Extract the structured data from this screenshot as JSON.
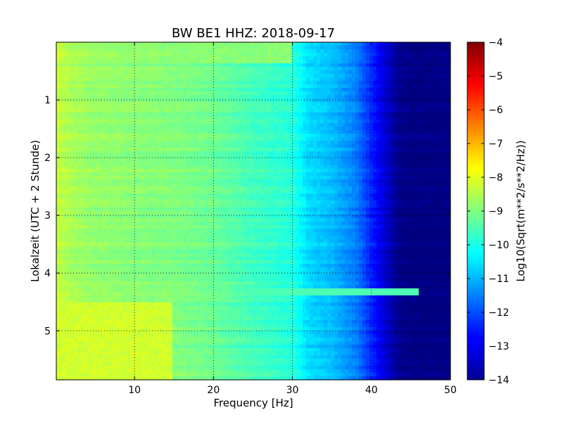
{
  "chart_data": {
    "type": "heatmap",
    "title": "BW BE1 HHZ: 2018-09-17",
    "xlabel": "Frequency [Hz]",
    "ylabel": "Lokalzeit (UTC + 2 Stunde)",
    "xlim": [
      0.1,
      50
    ],
    "ylim": [
      5.85,
      0.0
    ],
    "xticks": [
      10,
      20,
      30,
      40,
      50
    ],
    "yticks": [
      1,
      2,
      3,
      4,
      5
    ],
    "grid": true,
    "colormap": "jet",
    "colorbar": {
      "label": "Log10(Sqrt(m**2/s**2/Hz))",
      "range": [
        -14,
        -4
      ],
      "ticks": [
        -4,
        -5,
        -6,
        -7,
        -8,
        -9,
        -10,
        -11,
        -12,
        -13,
        -14
      ]
    },
    "psd_profile": {
      "frequency_hz": [
        0,
        2,
        5,
        10,
        15,
        20,
        25,
        30,
        32,
        35,
        38,
        40,
        42,
        43.5,
        45,
        50
      ],
      "log10_amplitude": [
        -8.3,
        -8.6,
        -8.8,
        -8.9,
        -9.0,
        -9.2,
        -9.6,
        -9.9,
        -10.6,
        -10.9,
        -11.5,
        -12.4,
        -13.3,
        -13.9,
        -14,
        -14
      ]
    },
    "features": [
      {
        "label": "broadband line",
        "hour": 4.33,
        "freq_range_hz": [
          20,
          46
        ],
        "log10_amplitude": -9.5
      },
      {
        "label": "elevated low-frequency energy",
        "hour_range": [
          4.5,
          5.85
        ],
        "freq_range_hz": [
          0,
          15
        ],
        "log10_amplitude": -8.2
      },
      {
        "label": "high-frequency band",
        "hour_range": [
          0,
          0.35
        ],
        "freq_range_hz": [
          0,
          30
        ],
        "log10_amplitude": -8.9
      }
    ]
  }
}
